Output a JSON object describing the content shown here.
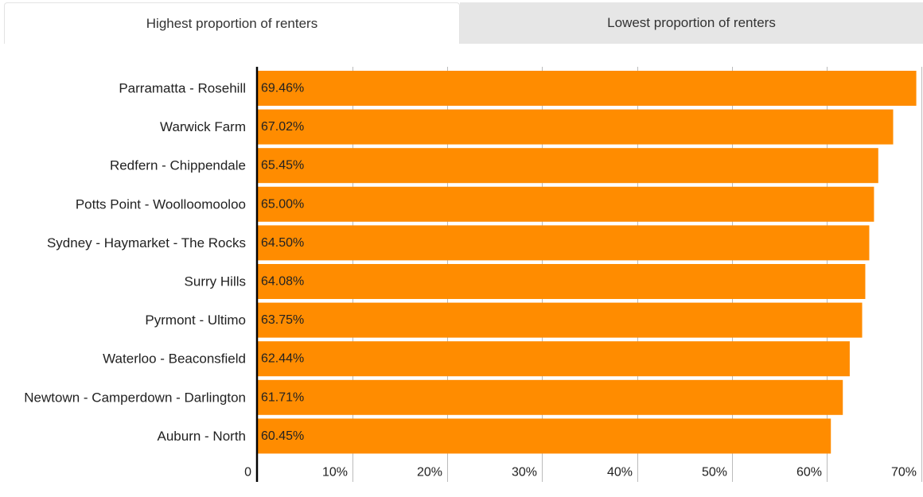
{
  "tabs": {
    "active_label": "Highest proportion of renters",
    "inactive_label": "Lowest proportion of renters"
  },
  "colors": {
    "bar": "#ff8c00",
    "grid": "#bbbbbb",
    "axis": "#000000",
    "tab_active_bg": "#ffffff",
    "tab_inactive_bg": "#e6e6e6"
  },
  "chart_data": {
    "type": "bar",
    "orientation": "horizontal",
    "categories": [
      "Parramatta - Rosehill",
      "Warwick Farm",
      "Redfern - Chippendale",
      "Potts Point - Woolloomooloo",
      "Sydney - Haymarket - The Rocks",
      "Surry Hills",
      "Pyrmont - Ultimo",
      "Waterloo - Beaconsfield",
      "Newtown - Camperdown - Darlington",
      "Auburn - North"
    ],
    "values": [
      69.46,
      67.02,
      65.45,
      65.0,
      64.5,
      64.08,
      63.75,
      62.44,
      61.71,
      60.45
    ],
    "value_labels": [
      "69.46%",
      "67.02%",
      "65.45%",
      "65.00%",
      "64.50%",
      "64.08%",
      "63.75%",
      "62.44%",
      "61.71%",
      "60.45%"
    ],
    "xlim": [
      0,
      70
    ],
    "xticks": [
      0,
      10,
      20,
      30,
      40,
      50,
      60,
      70
    ],
    "xtick_labels": [
      "0",
      "10%",
      "20%",
      "30%",
      "40%",
      "50%",
      "60%",
      "70%"
    ],
    "grid": true,
    "title": "",
    "xlabel": "",
    "ylabel": ""
  }
}
